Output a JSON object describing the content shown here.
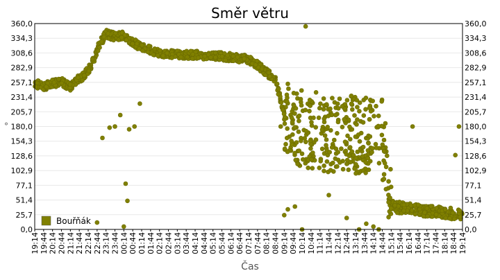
{
  "chart_data": {
    "type": "scatter",
    "title": "Směr větru",
    "xlabel": "Čas",
    "ylabel": "°",
    "ylim": [
      0,
      360
    ],
    "y_ticks": [
      "0,0",
      "25,7",
      "51,4",
      "77,1",
      "102,9",
      "128,6",
      "154,3",
      "180,0",
      "205,7",
      "231,4",
      "257,1",
      "282,9",
      "308,6",
      "334,3",
      "360,0"
    ],
    "x_ticks": [
      "19:14",
      "19:44",
      "20:14",
      "20:44",
      "21:14",
      "21:44",
      "22:14",
      "22:44",
      "23:14",
      "23:44",
      "00:14",
      "00:44",
      "01:14",
      "01:44",
      "02:14",
      "02:44",
      "03:14",
      "03:44",
      "04:14",
      "04:44",
      "05:14",
      "05:44",
      "06:14",
      "06:44",
      "07:14",
      "07:44",
      "08:14",
      "08:44",
      "09:14",
      "09:44",
      "10:14",
      "10:44",
      "11:14",
      "11:44",
      "12:14",
      "12:44",
      "13:14",
      "13:44",
      "14:14",
      "14:44",
      "15:14",
      "15:44",
      "16:14",
      "16:44",
      "17:14",
      "17:44",
      "18:14",
      "18:44",
      "19:14"
    ],
    "grid": true,
    "legend_position": "bottom-left",
    "series": [
      {
        "name": "Bouřňák",
        "color": "#808000",
        "trend": [
          [
            0,
            255
          ],
          [
            0.5,
            250
          ],
          [
            1,
            255
          ],
          [
            1.5,
            258
          ],
          [
            2,
            248
          ],
          [
            2.4,
            262
          ],
          [
            2.8,
            270
          ],
          [
            3.2,
            288
          ],
          [
            3.6,
            322
          ],
          [
            4,
            342
          ],
          [
            4.5,
            337
          ],
          [
            5,
            340
          ],
          [
            5.5,
            328
          ],
          [
            6,
            318
          ],
          [
            7,
            308
          ],
          [
            8,
            306
          ],
          [
            9,
            305
          ],
          [
            10,
            304
          ],
          [
            11,
            301
          ],
          [
            12,
            297
          ],
          [
            12.5,
            288
          ],
          [
            13,
            275
          ],
          [
            13.5,
            262
          ],
          [
            14,
            200
          ],
          [
            14.5,
            180
          ],
          [
            16,
            170
          ],
          [
            18,
            165
          ],
          [
            19.5,
            160
          ],
          [
            20,
            40
          ],
          [
            21,
            36
          ],
          [
            22,
            32
          ],
          [
            23,
            30
          ],
          [
            24,
            25
          ]
        ],
        "outliers": [
          [
            3.5,
            12
          ],
          [
            3.8,
            160
          ],
          [
            4.2,
            178
          ],
          [
            4.5,
            180
          ],
          [
            4.8,
            200
          ],
          [
            5.0,
            5
          ],
          [
            5.1,
            80
          ],
          [
            5.2,
            50
          ],
          [
            5.3,
            175
          ],
          [
            5.6,
            180
          ],
          [
            5.9,
            220
          ],
          [
            13.8,
            180
          ],
          [
            14.0,
            25
          ],
          [
            14.2,
            35
          ],
          [
            14.6,
            40
          ],
          [
            15.0,
            0
          ],
          [
            15.2,
            355
          ],
          [
            16.5,
            60
          ],
          [
            17.5,
            20
          ],
          [
            18.2,
            0
          ],
          [
            18.6,
            10
          ],
          [
            19.0,
            5
          ],
          [
            19.3,
            0
          ],
          [
            21.2,
            180
          ],
          [
            23.6,
            130
          ],
          [
            23.8,
            180
          ]
        ],
        "spread": 55,
        "n_points": 1400
      }
    ]
  }
}
